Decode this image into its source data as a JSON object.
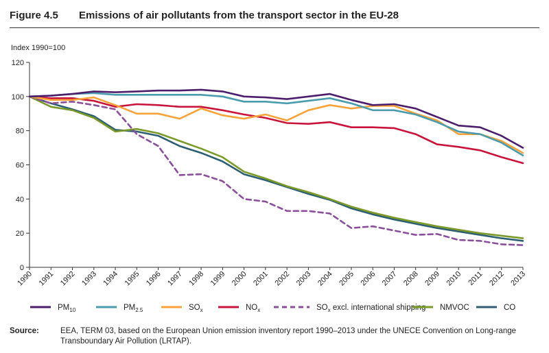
{
  "figure": {
    "number": "Figure 4.5",
    "title": "Emissions of air pollutants from the transport sector in the EU-28"
  },
  "source": {
    "label": "Source:",
    "text": "EEA, TERM 03, based on the European Union emission inventory report 1990–2013 under the UNECE Convention on Long-range Transboundary Air Pollution (LRTAP)."
  },
  "chart_data": {
    "type": "line",
    "title": "Emissions of air pollutants from the transport sector in the EU-28",
    "ylabel": "Index 1990=100",
    "xlabel": "",
    "ylim": [
      0,
      120
    ],
    "yticks": [
      0,
      20,
      40,
      60,
      80,
      100,
      120
    ],
    "grid": false,
    "legend_position": "bottom",
    "x": [
      1990,
      1991,
      1992,
      1993,
      1994,
      1995,
      1996,
      1997,
      1998,
      1999,
      2000,
      2001,
      2002,
      2003,
      2004,
      2005,
      2006,
      2007,
      2008,
      2009,
      2010,
      2011,
      2012,
      2013
    ],
    "series": [
      {
        "name": "PM10",
        "label_main": "PM",
        "label_sub": "10",
        "label_tail": "",
        "color": "#4b1d6b",
        "dashed": false,
        "values": [
          100,
          100.5,
          101.5,
          103,
          102.5,
          103,
          103.5,
          103.5,
          104,
          103,
          100,
          99.5,
          98.5,
          100,
          101.5,
          98,
          95,
          95.5,
          93,
          88,
          83,
          82,
          77,
          70
        ]
      },
      {
        "name": "PM2.5",
        "label_main": "PM",
        "label_sub": "2.5",
        "label_tail": "",
        "color": "#4a9bad",
        "dashed": false,
        "values": [
          100,
          100.5,
          101.5,
          102,
          101,
          101,
          101,
          101,
          101,
          100,
          97,
          97,
          96,
          97.5,
          99,
          96,
          92,
          92,
          89.5,
          85,
          79.5,
          78,
          73,
          65.5
        ]
      },
      {
        "name": "SOx",
        "label_main": "SO",
        "label_sub": "x",
        "label_tail": "",
        "color": "#f7a33a",
        "dashed": false,
        "values": [
          100,
          98,
          98,
          99.5,
          95,
          90,
          90,
          87,
          93,
          89,
          87,
          89.5,
          86,
          92,
          95,
          93,
          94.5,
          94.5,
          90,
          86,
          78,
          78,
          74,
          67
        ]
      },
      {
        "name": "NOx",
        "label_main": "NO",
        "label_sub": "x",
        "label_tail": "",
        "color": "#c8133a",
        "dashed": false,
        "values": [
          100,
          99,
          99,
          97.5,
          94,
          95.5,
          95,
          94,
          94,
          92,
          89.5,
          87.5,
          84.5,
          84,
          85,
          82,
          82,
          81.5,
          78,
          72,
          70.5,
          68.5,
          64.5,
          61
        ]
      },
      {
        "name": "SOx excl. international shipping",
        "label_main": "SO",
        "label_sub": "x",
        "label_tail": " excl. international shipping",
        "color": "#8a4f9a",
        "dashed": true,
        "values": [
          100,
          96,
          97,
          95,
          92.5,
          78,
          71,
          54,
          54.5,
          50.5,
          40,
          38.5,
          33,
          33,
          31.5,
          23,
          24,
          21.5,
          19,
          19.5,
          16,
          15.5,
          13.5,
          13
        ]
      },
      {
        "name": "NMVOC",
        "label_main": "NMVOC",
        "label_sub": "",
        "label_tail": "",
        "color": "#7b9a2a",
        "dashed": false,
        "values": [
          100,
          94,
          92,
          87.5,
          79.5,
          81,
          78.5,
          74,
          69.5,
          64.5,
          56,
          52,
          47.5,
          44,
          40,
          35.5,
          32,
          29,
          26.5,
          24,
          22,
          20,
          18.5,
          17
        ]
      },
      {
        "name": "CO",
        "label_main": "CO",
        "label_sub": "",
        "label_tail": "",
        "color": "#2d5f73",
        "dashed": false,
        "values": [
          100,
          96,
          92.5,
          88.5,
          80.5,
          79.5,
          77,
          71,
          67,
          62,
          54.5,
          51,
          47,
          43,
          39.5,
          34.5,
          31,
          28,
          25.5,
          23,
          21,
          19,
          17,
          15.5
        ]
      }
    ]
  }
}
